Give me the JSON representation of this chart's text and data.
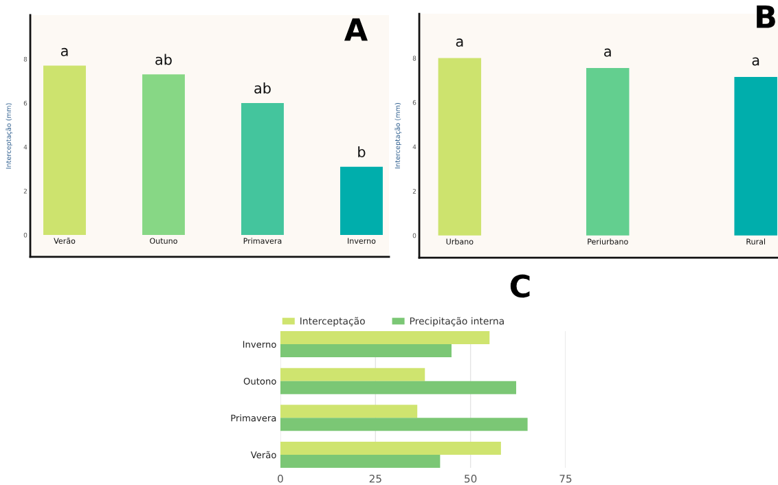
{
  "chart_data": [
    {
      "type": "bar",
      "title": "A",
      "ylabel": "Interceptação (mm)",
      "categories": [
        "Verão",
        "Outuno",
        "Primavera",
        "Inverno"
      ],
      "values": [
        7.7,
        7.3,
        6.0,
        3.1
      ],
      "colors": [
        "#cde36e",
        "#87d785",
        "#44c59d",
        "#00aeac"
      ],
      "value_labels": [
        "a",
        "ab",
        "ab",
        "b"
      ],
      "ylim": [
        -1,
        10
      ],
      "yticks": [
        0,
        2,
        4,
        6,
        8
      ]
    },
    {
      "type": "bar",
      "title": "B",
      "ylabel": "Interceptação (mm)",
      "categories": [
        "Urbano",
        "Periurbano",
        "Rural"
      ],
      "values": [
        8.0,
        7.55,
        7.15
      ],
      "colors": [
        "#cde36e",
        "#63cf8f",
        "#00aeac"
      ],
      "value_labels": [
        "a",
        "a",
        "a"
      ],
      "ylim": [
        -1,
        10
      ],
      "yticks": [
        0,
        2,
        4,
        6,
        8
      ]
    },
    {
      "type": "bar",
      "title": "C",
      "orientation": "horizontal",
      "categories": [
        "Inverno",
        "Outono",
        "Primavera",
        "Verão"
      ],
      "series": [
        {
          "name": "Interceptação",
          "color": "#cfe46f",
          "values": [
            55,
            38,
            36,
            58
          ]
        },
        {
          "name": "Precipitação interna",
          "color": "#7bc775",
          "values": [
            45,
            62,
            65,
            42
          ]
        }
      ],
      "xlim": [
        0,
        75
      ],
      "xticks": [
        0,
        25,
        50,
        75
      ],
      "grid": "x",
      "legend": "top"
    }
  ]
}
